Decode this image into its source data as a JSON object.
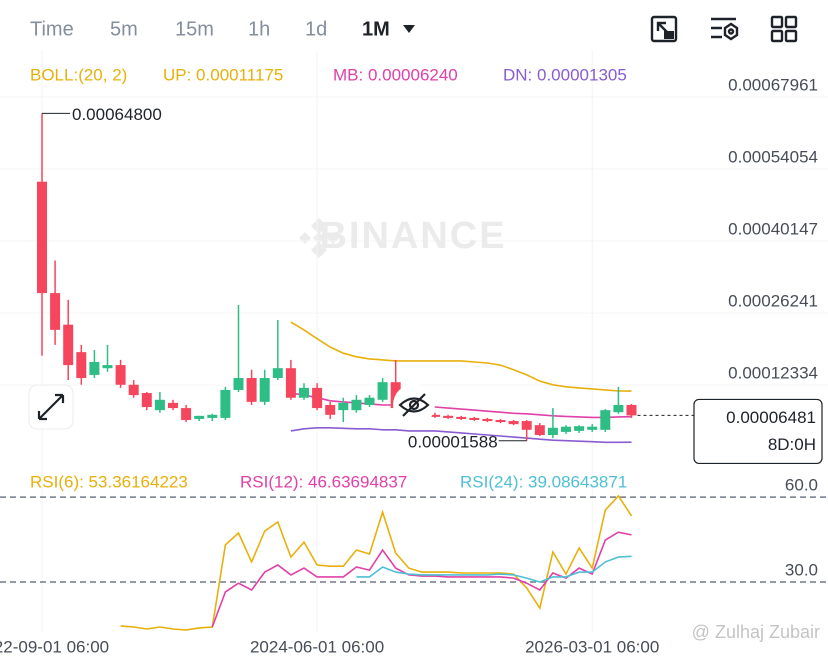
{
  "toolbar": {
    "intervals": [
      "Time",
      "5m",
      "15m",
      "1h",
      "1d",
      "1M"
    ],
    "active": 5
  },
  "watermark": "BINANCE",
  "credit": "@ Zulhaj Zubair",
  "chart_data": [
    {
      "type": "candlestick",
      "indicator_label": "BOLL:(20, 2)",
      "categories": [
        "2022-09-01 06:00",
        null,
        null,
        null,
        null,
        null,
        null,
        null,
        null,
        null,
        null,
        null,
        null,
        null,
        null,
        null,
        null,
        null,
        null,
        null,
        null,
        "2024-06-01 06:00",
        null,
        null,
        null,
        null,
        null,
        null,
        null,
        null,
        null,
        null,
        null,
        null,
        null,
        null,
        null,
        null,
        null,
        null,
        null,
        null,
        "2026-03-01 06:00",
        null,
        null,
        null
      ],
      "open": [
        0.000516,
        0.000301,
        0.00024,
        0.000187,
        0.000143,
        0.000156,
        0.000162,
        0.000124,
        0.000108,
        7.5e-05,
        8.9e-05,
        7.9e-05,
        5.8e-05,
        6e-05,
        6e-05,
        0.000114,
        0.000137,
        9.1e-05,
        0.000137,
        0.000156,
        9.9e-05,
        0.000118,
        8.5e-05,
        7.5e-05,
        7.5e-05,
        8.5e-05,
        9.5e-05,
        0.000129,
        7.9e-05,
        7e-05,
        6.6e-05,
        6.4e-05,
        6.2e-05,
        6e-05,
        5.8e-05,
        5.6e-05,
        5.4e-05,
        5.4e-05,
        4.6e-05,
        2.7e-05,
        3.3e-05,
        3.5e-05,
        3.7e-05,
        3.7e-05,
        7.1e-05,
        8.5e-05
      ],
      "high": [
        0.000648,
        0.000364,
        0.000288,
        0.000201,
        0.000191,
        0.000201,
        0.000172,
        0.000133,
        0.00011,
        0.00011,
        9.5e-05,
        8.5e-05,
        6.4e-05,
        6.8e-05,
        0.00012,
        0.000278,
        0.000153,
        0.000153,
        0.000249,
        0.000172,
        0.000127,
        0.000127,
        9.1e-05,
        9.9e-05,
        0.000104,
        0.000104,
        0.000137,
        0.000172,
        8.5e-05,
        7.5e-05,
        7e-05,
        6.6e-05,
        6.4e-05,
        6.2e-05,
        6e-05,
        5.8e-05,
        5.6e-05,
        5.6e-05,
        5e-05,
        7.9e-05,
        4.6e-05,
        4.6e-05,
        4.8e-05,
        7.7e-05,
        0.00012,
        8.7e-05
      ],
      "low": [
        0.00018,
        0.000201,
        0.000133,
        0.000124,
        0.000137,
        0.000149,
        0.000118,
        9.9e-05,
        7.5e-05,
        7e-05,
        7.5e-05,
        5.2e-05,
        5.4e-05,
        5.4e-05,
        5.6e-05,
        0.00011,
        8.5e-05,
        8.5e-05,
        0.000133,
        9.5e-05,
        9.5e-05,
        7.5e-05,
        5.8e-05,
        5.2e-05,
        7e-05,
        8.1e-05,
        9.1e-05,
        7.5e-05,
        6.6e-05,
        6e-05,
        6e-05,
        5.8e-05,
        5.6e-05,
        5.4e-05,
        5.2e-05,
        5e-05,
        4.6e-05,
        1.588e-05,
        2.5e-05,
        2.1e-05,
        2.9e-05,
        3.1e-05,
        3.3e-05,
        3.3e-05,
        6.8e-05,
        6e-05
      ],
      "close": [
        0.000301,
        0.00023,
        0.000162,
        0.000137,
        0.000168,
        0.000162,
        0.000124,
        0.000104,
        8.1e-05,
        9.5e-05,
        7.9e-05,
        5.6e-05,
        6.4e-05,
        6.6e-05,
        0.000114,
        0.000137,
        9.1e-05,
        0.000137,
        0.000156,
        9.9e-05,
        0.000118,
        7.9e-05,
        6.6e-05,
        8.9e-05,
        9.5e-05,
        9.9e-05,
        0.000129,
        7.9e-05,
        7e-05,
        6.4e-05,
        6.2e-05,
        6e-05,
        5.8e-05,
        5.6e-05,
        5.4e-05,
        5.2e-05,
        4.8e-05,
        3.7e-05,
        2.7e-05,
        4.1e-05,
        4.3e-05,
        4.4e-05,
        4.3e-05,
        7.5e-05,
        8.5e-05,
        6.481e-05
      ],
      "up_color": "#2ebd85",
      "down_color": "#f6465d",
      "series": [
        {
          "name": "UP: 0.00011175",
          "color": "#e8b00c",
          "values": [
            null,
            null,
            null,
            null,
            null,
            null,
            null,
            null,
            null,
            null,
            null,
            null,
            null,
            null,
            null,
            null,
            null,
            null,
            null,
            0.000245,
            0.00023,
            0.000213,
            0.000197,
            0.000185,
            0.000178,
            0.000174,
            0.000172,
            0.00017,
            0.00017,
            0.00017,
            0.00017,
            0.00017,
            0.00017,
            0.000168,
            0.000166,
            0.000162,
            0.000153,
            0.000143,
            0.000131,
            0.000124,
            0.00012,
            0.000118,
            0.000116,
            0.000114,
            0.000112,
            0.00011175
          ]
        },
        {
          "name": "MB: 0.00006240",
          "color": "#e040a8",
          "values": [
            null,
            null,
            null,
            null,
            null,
            null,
            null,
            null,
            null,
            null,
            null,
            null,
            null,
            null,
            null,
            null,
            null,
            null,
            null,
            0.000108,
            0.000104,
            9.9e-05,
            9.3e-05,
            9.1e-05,
            8.9e-05,
            8.7e-05,
            8.5e-05,
            8.5e-05,
            8.5e-05,
            8.3e-05,
            8.1e-05,
            7.9e-05,
            7.7e-05,
            7.5e-05,
            7.3e-05,
            7.1e-05,
            6.9e-05,
            6.8e-05,
            6.6e-05,
            6.4e-05,
            6.3e-05,
            6.2e-05,
            6.1e-05,
            6.1e-05,
            6.2e-05,
            6.24e-05
          ]
        },
        {
          "name": "DN: 0.00001305",
          "color": "#8a5cd1",
          "values": [
            null,
            null,
            null,
            null,
            null,
            null,
            null,
            null,
            null,
            null,
            null,
            null,
            null,
            null,
            null,
            null,
            null,
            null,
            null,
            3.5e-05,
            3.9e-05,
            4.1e-05,
            4.1e-05,
            4e-05,
            3.9e-05,
            3.9e-05,
            3.7e-05,
            3.7e-05,
            3.5e-05,
            3.5e-05,
            3.5e-05,
            3.3e-05,
            3.1e-05,
            2.9e-05,
            2.7e-05,
            2.5e-05,
            2.3e-05,
            2.1e-05,
            1.9e-05,
            1.7e-05,
            1.6e-05,
            1.5e-05,
            1.4e-05,
            1.3e-05,
            1.3e-05,
            1.305e-05
          ]
        }
      ],
      "high_label": "0.00064800",
      "low_label": "0.00001588",
      "countdown": "8D:0H",
      "ylim": [
        -1.16e-05,
        0.000751
      ],
      "yticks": [
        0.00067961,
        0.00054054,
        0.00040147,
        0.00026241,
        0.00012334
      ]
    },
    {
      "type": "line",
      "series": [
        {
          "name": "RSI(6): 53.36164223",
          "color": "#e8b00c",
          "values": [
            null,
            null,
            null,
            null,
            null,
            null,
            14.5,
            14.1,
            13.4,
            14.1,
            13.4,
            13.1,
            13.8,
            14.1,
            43.1,
            47.3,
            37.1,
            48.0,
            51.2,
            38.8,
            44.1,
            36.0,
            35.6,
            35.6,
            41.3,
            39.9,
            54.7,
            40.2,
            34.9,
            33.5,
            33.5,
            33.5,
            33.2,
            33.2,
            33.2,
            33.2,
            32.8,
            27.9,
            20.8,
            40.6,
            32.8,
            42.0,
            34.9,
            55.4,
            60.4,
            53.36164223
          ]
        },
        {
          "name": "RSI(12): 46.63694837",
          "color": "#e040a8",
          "values": [
            null,
            null,
            null,
            null,
            null,
            null,
            null,
            null,
            null,
            null,
            null,
            null,
            null,
            14.1,
            26.5,
            29.6,
            27.2,
            33.5,
            36.0,
            32.5,
            34.9,
            31.8,
            31.8,
            31.8,
            35.3,
            34.2,
            41.3,
            34.9,
            32.5,
            32.1,
            32.1,
            31.8,
            31.8,
            31.8,
            31.8,
            31.8,
            31.4,
            29.6,
            27.2,
            33.2,
            31.4,
            34.9,
            32.8,
            44.8,
            47.6,
            46.63694837
          ]
        },
        {
          "name": "RSI(24): 39.08643871",
          "color": "#4fbfd6",
          "values": [
            null,
            null,
            null,
            null,
            null,
            null,
            null,
            null,
            null,
            null,
            null,
            null,
            null,
            null,
            null,
            null,
            null,
            null,
            null,
            null,
            null,
            null,
            null,
            null,
            31.8,
            31.8,
            35.3,
            33.5,
            32.8,
            32.5,
            32.5,
            32.5,
            32.5,
            32.5,
            32.5,
            32.8,
            32.5,
            31.4,
            30,
            31.8,
            31.8,
            33.5,
            33.5,
            37.1,
            38.8,
            39.08643871
          ]
        }
      ],
      "ylim": [
        12.35,
        62.5
      ],
      "yticks": [
        {
          "value": 60,
          "label": "60.0"
        },
        {
          "value": 30,
          "label": "30.0"
        }
      ]
    }
  ]
}
